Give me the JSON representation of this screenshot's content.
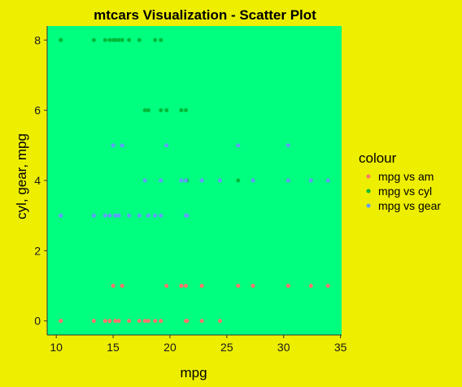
{
  "colors": {
    "background": "#EEEE00",
    "panel": "#00FF7F",
    "mpg_vs_am": "#F8766D",
    "mpg_vs_cyl": "#00BA38",
    "mpg_vs_gear": "#619CFF"
  },
  "chart_data": {
    "type": "scatter",
    "title": "mtcars Visualization - Scatter Plot",
    "xlabel": "mpg",
    "ylabel": "cyl, gear, mpg",
    "xlim": [
      9.2,
      35.1
    ],
    "ylim": [
      -0.4,
      8.4
    ],
    "xticks": [
      10,
      15,
      20,
      25,
      30,
      35
    ],
    "yticks": [
      0,
      2,
      4,
      6,
      8
    ],
    "grid": false,
    "legend": {
      "title": "colour",
      "placement": "right"
    },
    "series": [
      {
        "name": "mpg vs am",
        "color": "#F8766D",
        "x": [
          21.0,
          21.0,
          22.8,
          21.4,
          18.7,
          18.1,
          14.3,
          24.4,
          22.8,
          19.2,
          17.8,
          16.4,
          17.3,
          15.2,
          10.4,
          10.4,
          14.7,
          32.4,
          30.4,
          33.9,
          21.5,
          15.5,
          15.2,
          13.3,
          19.2,
          27.3,
          26.0,
          30.4,
          15.8,
          19.7,
          15.0,
          21.4
        ],
        "y": [
          1,
          1,
          1,
          0,
          0,
          0,
          0,
          0,
          0,
          0,
          0,
          0,
          0,
          0,
          0,
          0,
          0,
          1,
          1,
          1,
          0,
          0,
          0,
          0,
          0,
          1,
          1,
          1,
          1,
          1,
          1,
          1
        ]
      },
      {
        "name": "mpg vs cyl",
        "color": "#00BA38",
        "x": [
          21.0,
          21.0,
          22.8,
          21.4,
          18.7,
          18.1,
          14.3,
          24.4,
          22.8,
          19.2,
          17.8,
          16.4,
          17.3,
          15.2,
          10.4,
          10.4,
          14.7,
          32.4,
          30.4,
          33.9,
          21.5,
          15.5,
          15.2,
          13.3,
          19.2,
          27.3,
          26.0,
          30.4,
          15.8,
          19.7,
          15.0,
          21.4
        ],
        "y": [
          6,
          6,
          4,
          6,
          8,
          6,
          8,
          4,
          4,
          6,
          6,
          8,
          8,
          8,
          8,
          8,
          8,
          4,
          4,
          4,
          4,
          8,
          8,
          8,
          8,
          4,
          4,
          4,
          8,
          6,
          8,
          4
        ]
      },
      {
        "name": "mpg vs gear",
        "color": "#619CFF",
        "x": [
          21.0,
          21.0,
          22.8,
          21.4,
          18.7,
          18.1,
          14.3,
          24.4,
          22.8,
          19.2,
          17.8,
          16.4,
          17.3,
          15.2,
          10.4,
          10.4,
          14.7,
          32.4,
          30.4,
          33.9,
          21.5,
          15.5,
          15.2,
          13.3,
          19.2,
          27.3,
          26.0,
          30.4,
          15.8,
          19.7,
          15.0,
          21.4
        ],
        "y": [
          4,
          4,
          4,
          3,
          3,
          3,
          3,
          4,
          4,
          4,
          4,
          3,
          3,
          3,
          3,
          3,
          3,
          4,
          4,
          4,
          3,
          3,
          3,
          3,
          3,
          4,
          5,
          5,
          5,
          5,
          5,
          4
        ]
      }
    ]
  }
}
